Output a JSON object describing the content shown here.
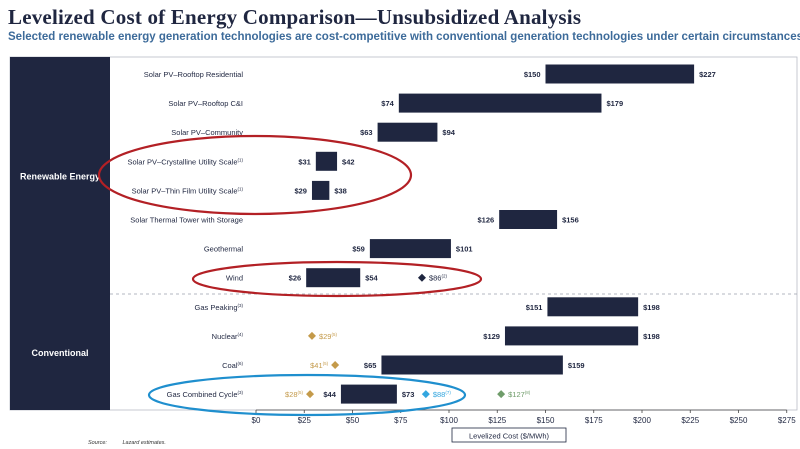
{
  "header": {
    "title": "Levelized Cost of Energy Comparison—Unsubsidized Analysis",
    "subtitle": "Selected renewable energy generation technologies are cost-competitive with conventional generation technologies under certain circumstances"
  },
  "footer": {
    "source_label": "Source:",
    "source_text": "Lazard estimates."
  },
  "colors": {
    "bar": "#1f2640",
    "panel": "#1f2640",
    "gold": "#c49a4a",
    "blue": "#33a6df",
    "green": "#6f9c6a",
    "dark_marker": "#1f2640",
    "red_ellipse": "#b32025",
    "blue_ellipse": "#1f8fce"
  },
  "chart_data": {
    "type": "bar",
    "subtype": "floating-range",
    "xlabel": "Levelized Cost ($/MWh)",
    "xlim": [
      0,
      275
    ],
    "xticks": [
      0,
      25,
      50,
      75,
      100,
      125,
      150,
      175,
      200,
      225,
      250,
      275
    ],
    "xtick_labels": [
      "$0",
      "$25",
      "$50",
      "$75",
      "$100",
      "$125",
      "$150",
      "$175",
      "$200",
      "$225",
      "$250",
      "$275"
    ],
    "groups": [
      {
        "name": "Renewable Energy",
        "rows": [
          0,
          1,
          2,
          3,
          4,
          5,
          6,
          7
        ]
      },
      {
        "name": "Conventional",
        "rows": [
          8,
          9,
          10,
          11
        ]
      }
    ],
    "rows": [
      {
        "label": "Solar PV–Rooftop Residential",
        "sup": "",
        "low": 150,
        "high": 227,
        "low_label": "$150",
        "high_label": "$227",
        "markers": []
      },
      {
        "label": "Solar PV–Rooftop C&I",
        "sup": "",
        "low": 74,
        "high": 179,
        "low_label": "$74",
        "high_label": "$179",
        "markers": []
      },
      {
        "label": "Solar PV–Community",
        "sup": "",
        "low": 63,
        "high": 94,
        "low_label": "$63",
        "high_label": "$94",
        "markers": []
      },
      {
        "label": "Solar PV–Crystalline Utility Scale",
        "sup": "(1)",
        "low": 31,
        "high": 42,
        "low_label": "$31",
        "high_label": "$42",
        "markers": []
      },
      {
        "label": "Solar PV–Thin Film Utility Scale",
        "sup": "(1)",
        "low": 29,
        "high": 38,
        "low_label": "$29",
        "high_label": "$38",
        "markers": []
      },
      {
        "label": "Solar Thermal Tower with Storage",
        "sup": "",
        "low": 126,
        "high": 156,
        "low_label": "$126",
        "high_label": "$156",
        "markers": []
      },
      {
        "label": "Geothermal",
        "sup": "",
        "low": 59,
        "high": 101,
        "low_label": "$59",
        "high_label": "$101",
        "markers": []
      },
      {
        "label": "Wind",
        "sup": "",
        "low": 26,
        "high": 54,
        "low_label": "$26",
        "high_label": "$54",
        "markers": [
          {
            "value": 86,
            "label": "$86",
            "sup": "(2)",
            "color": "dark",
            "side": "right"
          }
        ]
      },
      {
        "label": "Gas Peaking",
        "sup": "(3)",
        "low": 151,
        "high": 198,
        "low_label": "$151",
        "high_label": "$198",
        "markers": []
      },
      {
        "label": "Nuclear",
        "sup": "(4)",
        "low": 129,
        "high": 198,
        "low_label": "$129",
        "high_label": "$198",
        "markers": [
          {
            "value": 29,
            "label": "$29",
            "sup": "(5)",
            "color": "gold",
            "side": "right"
          }
        ]
      },
      {
        "label": "Coal",
        "sup": "(6)",
        "low": 65,
        "high": 159,
        "low_label": "$65",
        "high_label": "$159",
        "markers": [
          {
            "value": 41,
            "label": "$41",
            "sup": "(5)",
            "color": "gold",
            "side": "left"
          }
        ]
      },
      {
        "label": "Gas Combined Cycle",
        "sup": "(3)",
        "low": 44,
        "high": 73,
        "low_label": "$44",
        "high_label": "$73",
        "markers": [
          {
            "value": 28,
            "label": "$28",
            "sup": "(5)",
            "color": "gold",
            "side": "left"
          },
          {
            "value": 88,
            "label": "$88",
            "sup": "(7)",
            "color": "blue",
            "side": "right"
          },
          {
            "value": 127,
            "label": "$127",
            "sup": "(8)",
            "color": "green",
            "side": "right"
          }
        ]
      }
    ],
    "highlights": [
      {
        "rows": [
          3,
          4
        ],
        "color": "red"
      },
      {
        "rows": [
          7
        ],
        "color": "red"
      },
      {
        "rows": [
          11
        ],
        "color": "blue"
      }
    ]
  }
}
